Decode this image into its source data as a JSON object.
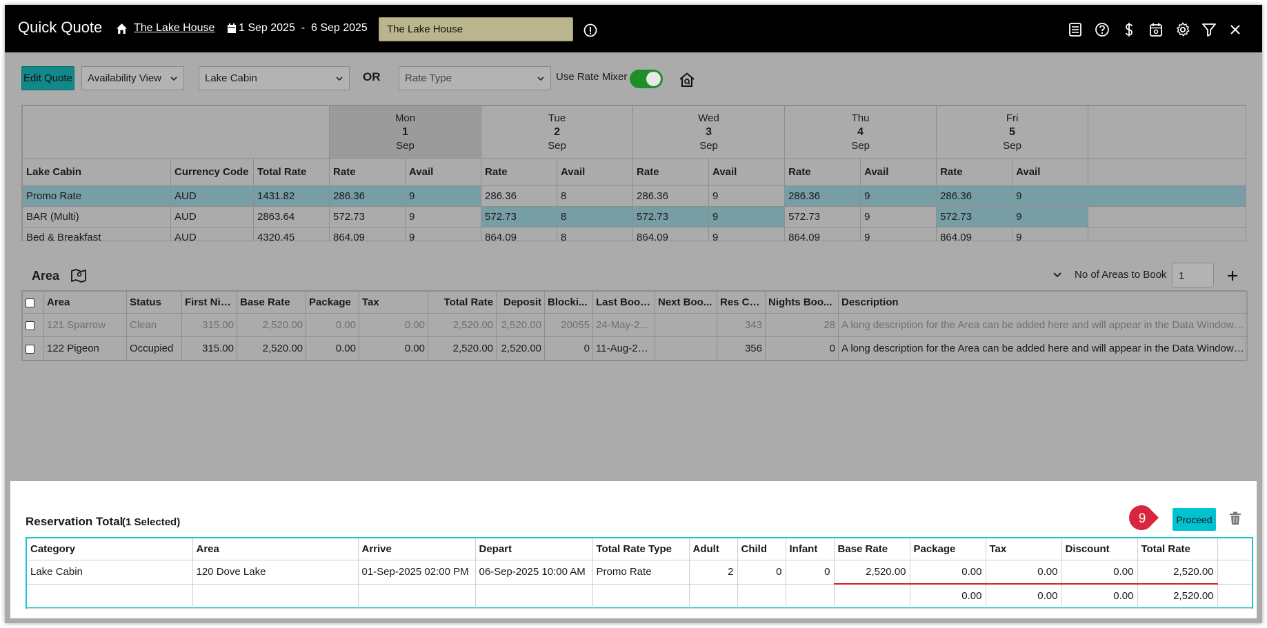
{
  "header": {
    "title": "Quick Quote",
    "property_link": "The Lake House",
    "date_start": "1 Sep 2025",
    "date_sep": "-",
    "date_end": "6 Sep 2025",
    "property_input_value": "The Lake House"
  },
  "toolbar": {
    "edit_quote_label": "Edit Quote",
    "view_select": "Availability View",
    "category_select": "Lake Cabin",
    "or_label": "OR",
    "rate_type_placeholder": "Rate Type",
    "rate_mixer_label": "Use Rate Mixer",
    "rate_mixer_on": true
  },
  "rate_grid": {
    "days": [
      {
        "dow": "Mon",
        "day": "1",
        "month": "Sep"
      },
      {
        "dow": "Tue",
        "day": "2",
        "month": "Sep"
      },
      {
        "dow": "Wed",
        "day": "3",
        "month": "Sep"
      },
      {
        "dow": "Thu",
        "day": "4",
        "month": "Sep"
      },
      {
        "dow": "Fri",
        "day": "5",
        "month": "Sep"
      }
    ],
    "headers": {
      "category": "Lake Cabin",
      "currency": "Currency Code",
      "total": "Total Rate",
      "rate": "Rate",
      "avail": "Avail"
    },
    "rows": [
      {
        "name": "Promo Rate",
        "currency": "AUD",
        "total": "1431.82",
        "cells": [
          [
            "286.36",
            "9"
          ],
          [
            "286.36",
            "8"
          ],
          [
            "286.36",
            "9"
          ],
          [
            "286.36",
            "9"
          ],
          [
            "286.36",
            "9"
          ]
        ]
      },
      {
        "name": "BAR (Multi)",
        "currency": "AUD",
        "total": "2863.64",
        "cells": [
          [
            "572.73",
            "9"
          ],
          [
            "572.73",
            "8"
          ],
          [
            "572.73",
            "9"
          ],
          [
            "572.73",
            "9"
          ],
          [
            "572.73",
            "9"
          ]
        ]
      },
      {
        "name": "Bed & Breakfast",
        "currency": "AUD",
        "total": "4320.45",
        "cells": [
          [
            "864.09",
            "9"
          ],
          [
            "864.09",
            "8"
          ],
          [
            "864.09",
            "9"
          ],
          [
            "864.09",
            "9"
          ],
          [
            "864.09",
            "9"
          ]
        ]
      }
    ]
  },
  "area_section": {
    "title": "Area",
    "no_areas_label": "No of Areas to Book",
    "no_areas_value": "1",
    "columns": [
      "Area",
      "Status",
      "First Nig...",
      "Base Rate",
      "Package",
      "Tax",
      "Total Rate",
      "Deposit",
      "Blocki...",
      "Last Book...",
      "Next Boo...",
      "Res Co...",
      "Nights Boo...",
      "Description"
    ],
    "rows": [
      [
        "121 Sparrow",
        "Clean",
        "315.00",
        "2,520.00",
        "0.00",
        "0.00",
        "2,520.00",
        "2,520.00",
        "20055",
        "24-May-2...",
        "",
        "343",
        "28",
        "A long description for the Area can be added here and will appear in the Data Window as a tooltip"
      ],
      [
        "122 Pigeon",
        "Occupied",
        "315.00",
        "2,520.00",
        "0.00",
        "0.00",
        "2,520.00",
        "2,520.00",
        "0",
        "11-Aug-20...",
        "",
        "356",
        "0",
        "A long description for the Area can be added here and will appear in the Data Window as a tooltip"
      ]
    ]
  },
  "reservation": {
    "title": "Reservation Total",
    "selected": "(1 Selected)",
    "callout_number": "9",
    "proceed_label": "Proceed",
    "columns": [
      "Category",
      "Area",
      "Arrive",
      "Depart",
      "Total Rate Type",
      "Adult",
      "Child",
      "Infant",
      "Base Rate",
      "Package",
      "Tax",
      "Discount",
      "Total Rate"
    ],
    "row": [
      "Lake Cabin",
      "120 Dove Lake",
      "01-Sep-2025 02:00 PM",
      "06-Sep-2025 10:00 AM",
      "Promo Rate",
      "2",
      "0",
      "0",
      "2,520.00",
      "0.00",
      "0.00",
      "0.00",
      "2,520.00"
    ],
    "totals": [
      "0.00",
      "0.00",
      "0.00",
      "2,520.00"
    ]
  },
  "colors": {
    "header_bg": "#000000",
    "accent": "#12888b",
    "proceed": "#00c3cf",
    "highlight_row": "#779ea5",
    "callout": "#d7263d",
    "toggle_on": "#1e8f25"
  }
}
